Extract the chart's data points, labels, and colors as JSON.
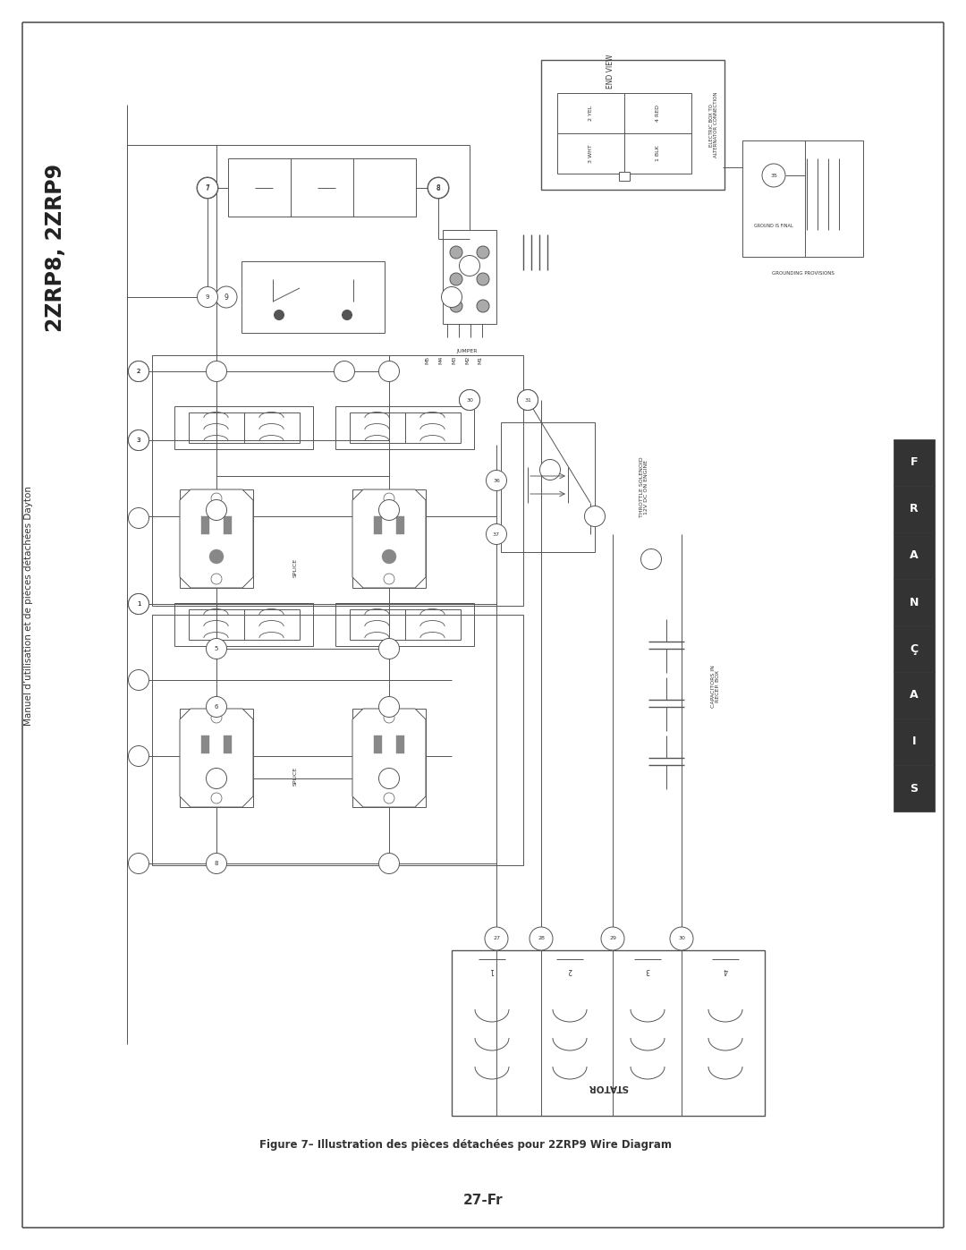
{
  "title": "2ZRP8, 2ZRP9",
  "subtitle": "Manuel d’utilisation et de pièces détachées Dayton",
  "page_number": "27-Fr",
  "figure_caption": "Figure 7– Illustration des pièces détachées pour 2ZRP9 Wire Diagram",
  "francais_label": [
    "F",
    "R",
    "A",
    "N",
    "Ç",
    "A",
    "I",
    "S"
  ],
  "bg_color": "#ffffff",
  "line_color": "#555555",
  "text_color": "#333333",
  "title_fontsize": 17,
  "caption_fontsize": 9,
  "page_num_fontsize": 11,
  "page_width": 10.8,
  "page_height": 13.97
}
